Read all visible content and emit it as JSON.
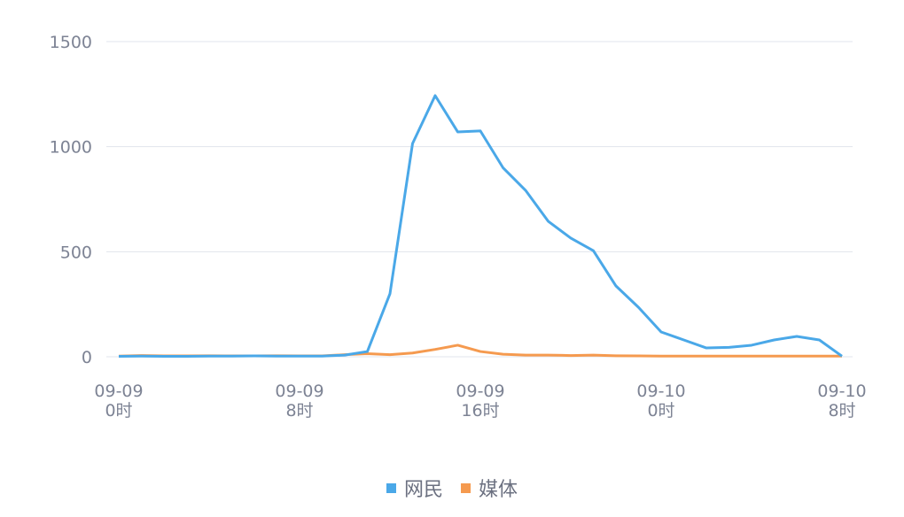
{
  "chart_data": {
    "type": "line",
    "categories": [
      "09-09\n0时",
      null,
      null,
      null,
      null,
      null,
      null,
      null,
      "09-09\n8时",
      null,
      null,
      null,
      null,
      null,
      null,
      null,
      "09-09\n16时",
      null,
      null,
      null,
      null,
      null,
      null,
      null,
      "09-10\n0时",
      null,
      null,
      null,
      null,
      null,
      null,
      null,
      "09-10\n8时"
    ],
    "series": [
      {
        "name": "网民",
        "color": "#4aa8e8",
        "values": [
          2,
          3,
          2,
          2,
          3,
          3,
          4,
          3,
          3,
          3,
          8,
          25,
          300,
          1015,
          1243,
          1070,
          1075,
          900,
          792,
          645,
          565,
          505,
          337,
          235,
          118,
          80,
          42,
          45,
          55,
          80,
          97,
          80,
          3
        ]
      },
      {
        "name": "媒体",
        "color": "#f59a4f",
        "values": [
          3,
          6,
          4,
          4,
          5,
          4,
          4,
          5,
          4,
          4,
          10,
          15,
          10,
          18,
          35,
          55,
          25,
          12,
          8,
          8,
          6,
          8,
          5,
          4,
          3,
          3,
          3,
          3,
          3,
          3,
          3,
          3,
          3
        ]
      }
    ],
    "ylim": [
      0,
      1500
    ],
    "yticks": [
      0,
      500,
      1000,
      1500
    ],
    "grid": true,
    "legend": "bottom"
  }
}
